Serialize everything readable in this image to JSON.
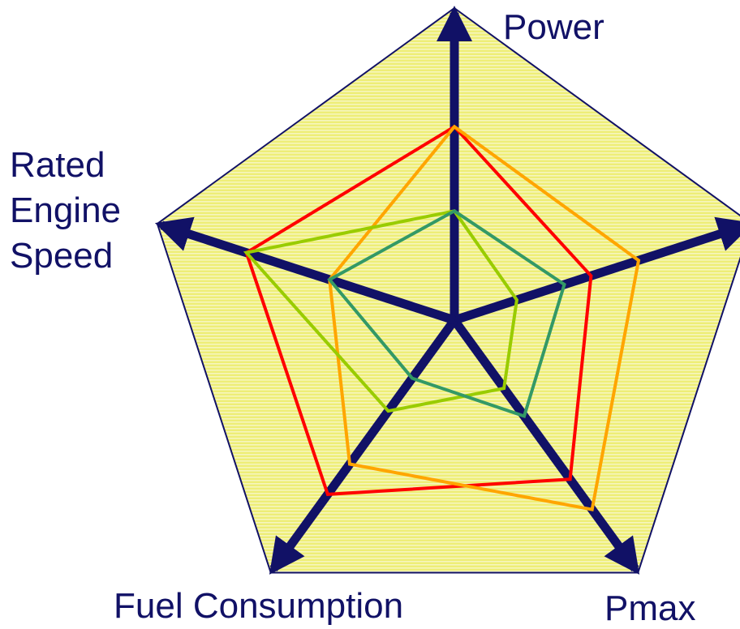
{
  "chart_data": {
    "type": "radar",
    "categories": [
      "Power",
      null,
      "Pmax",
      "Fuel Consumption",
      "Rated Engine Speed"
    ],
    "rlim": [
      0,
      100
    ],
    "series": [
      {
        "color": "#ff0000",
        "values": [
          62,
          46,
          63,
          69,
          70
        ]
      },
      {
        "color": "#ffa500",
        "values": [
          62,
          62,
          75,
          57,
          42
        ]
      },
      {
        "color": "#99cc00",
        "values": [
          35,
          21,
          27,
          36,
          70
        ]
      },
      {
        "color": "#339966",
        "values": [
          35,
          37,
          38,
          23,
          42
        ]
      }
    ]
  }
}
